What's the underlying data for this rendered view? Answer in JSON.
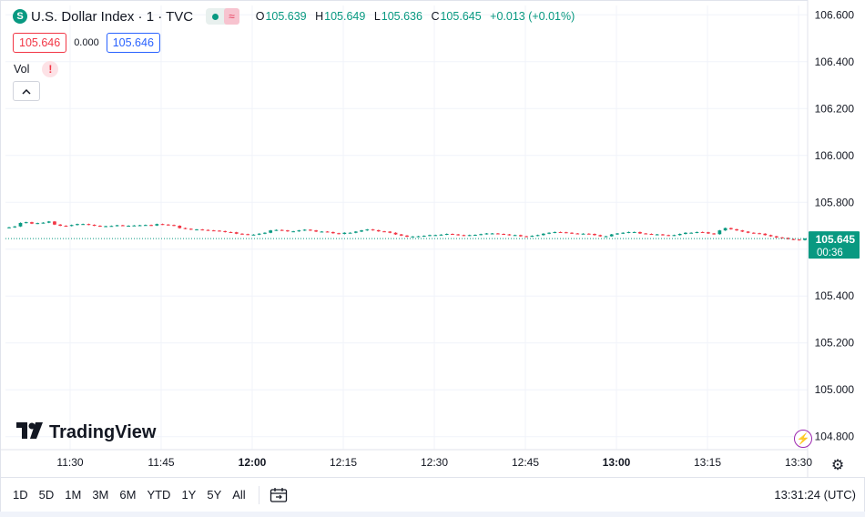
{
  "header": {
    "symbol_icon": "S",
    "title": "U.S. Dollar Index · 1 · TVC",
    "status_icon": "≈",
    "ohlc": {
      "o_label": "O",
      "o": "105.639",
      "h_label": "H",
      "h": "105.649",
      "l_label": "L",
      "l": "105.636",
      "c_label": "C",
      "c": "105.645",
      "change": "+0.013 (+0.01%)"
    }
  },
  "prices": {
    "bid": "105.646",
    "spread": "0.000",
    "ask": "105.646"
  },
  "volume": {
    "label": "Vol",
    "warning_icon": "!"
  },
  "logo": {
    "text": "TradingView"
  },
  "toolbar": {
    "ranges": [
      "1D",
      "5D",
      "1M",
      "3M",
      "6M",
      "YTD",
      "1Y",
      "5Y",
      "All"
    ],
    "clock": "13:31:24 (UTC)"
  },
  "colors": {
    "up": "#089981",
    "down": "#f23645",
    "grid": "#f0f3fa",
    "bid": "#f23645",
    "ask": "#2962ff"
  },
  "chart_data": {
    "type": "candlestick",
    "y_ticks": [
      "104.800",
      "105.000",
      "105.200",
      "105.400",
      "105.600",
      "105.800",
      "106.000",
      "106.200",
      "106.400",
      "106.600"
    ],
    "ylim": [
      104.76,
      106.64
    ],
    "x_ticks": [
      "11:30",
      "11:45",
      "12:00",
      "12:15",
      "12:30",
      "12:45",
      "13:00",
      "13:15",
      "13:30"
    ],
    "last_price": "105.645",
    "countdown": "00:36",
    "closes": [
      105.693,
      105.697,
      105.712,
      105.715,
      105.709,
      105.711,
      105.713,
      105.718,
      105.705,
      105.7,
      105.699,
      105.703,
      105.707,
      105.707,
      105.704,
      105.7,
      105.697,
      105.698,
      105.699,
      105.702,
      105.7,
      105.7,
      105.701,
      105.702,
      105.703,
      105.701,
      105.707,
      105.705,
      105.703,
      105.7,
      105.69,
      105.687,
      105.684,
      105.684,
      105.682,
      105.68,
      105.679,
      105.677,
      105.673,
      105.672,
      105.666,
      105.664,
      105.662,
      105.662,
      105.666,
      105.67,
      105.68,
      105.682,
      105.68,
      105.676,
      105.676,
      105.68,
      105.683,
      105.68,
      105.675,
      105.675,
      105.673,
      105.668,
      105.665,
      105.67,
      105.67,
      105.675,
      105.68,
      105.684,
      105.681,
      105.676,
      105.675,
      105.67,
      105.663,
      105.658,
      105.653,
      105.654,
      105.655,
      105.657,
      105.66,
      105.66,
      105.662,
      105.665,
      105.663,
      105.66,
      105.658,
      105.66,
      105.661,
      105.664,
      105.667,
      105.667,
      105.665,
      105.663,
      105.66,
      105.66,
      105.655,
      105.654,
      105.657,
      105.66,
      105.666,
      105.67,
      105.673,
      105.672,
      105.67,
      105.667,
      105.666,
      105.666,
      105.665,
      105.66,
      105.655,
      105.655,
      105.663,
      105.667,
      105.67,
      105.673,
      105.673,
      105.667,
      105.665,
      105.663,
      105.663,
      105.66,
      105.658,
      105.66,
      105.665,
      105.67,
      105.67,
      105.673,
      105.672,
      105.667,
      105.664,
      105.68,
      105.69,
      105.685,
      105.68,
      105.675,
      105.67,
      105.668,
      105.666,
      105.66,
      105.655,
      105.65,
      105.648,
      105.643,
      105.641,
      105.639,
      105.645
    ]
  }
}
